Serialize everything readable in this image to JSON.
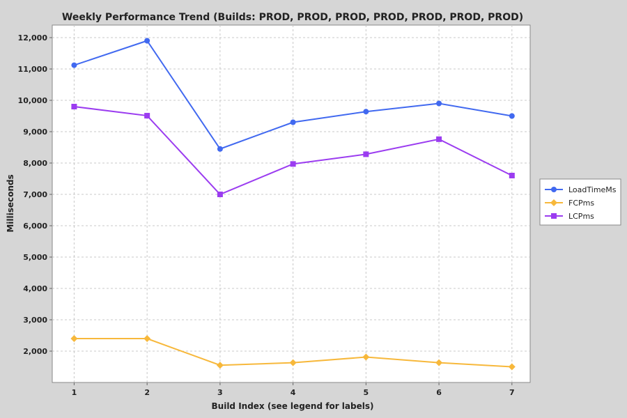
{
  "chart_data": {
    "type": "line",
    "title": "Weekly Performance Trend (Builds: PROD, PROD, PROD, PROD, PROD, PROD, PROD)",
    "xlabel": "Build Index (see legend for labels)",
    "ylabel": "Milliseconds",
    "x": [
      1,
      2,
      3,
      4,
      5,
      6,
      7
    ],
    "xlim": [
      0.7,
      7.25
    ],
    "ylim": [
      1000,
      12400
    ],
    "yticks": [
      2000,
      3000,
      4000,
      5000,
      6000,
      7000,
      8000,
      9000,
      10000,
      11000,
      12000
    ],
    "ytick_labels": [
      "2,000",
      "3,000",
      "4,000",
      "5,000",
      "6,000",
      "7,000",
      "8,000",
      "9,000",
      "10,000",
      "11,000",
      "12,000"
    ],
    "xtick_labels": [
      "1",
      "2",
      "3",
      "4",
      "5",
      "6",
      "7"
    ],
    "grid": true,
    "legend_position": "right",
    "series": [
      {
        "name": "LoadTimeMs",
        "marker": "circle",
        "color": "#4169f0",
        "values": [
          11120,
          11900,
          8450,
          9300,
          9640,
          9900,
          9500
        ]
      },
      {
        "name": "FCPms",
        "marker": "diamond",
        "color": "#f7b83b",
        "values": [
          2400,
          2400,
          1550,
          1630,
          1810,
          1630,
          1500
        ]
      },
      {
        "name": "LCPms",
        "marker": "square",
        "color": "#9b3cf0",
        "values": [
          9800,
          9510,
          7000,
          7970,
          8280,
          8760,
          7600
        ]
      }
    ]
  }
}
